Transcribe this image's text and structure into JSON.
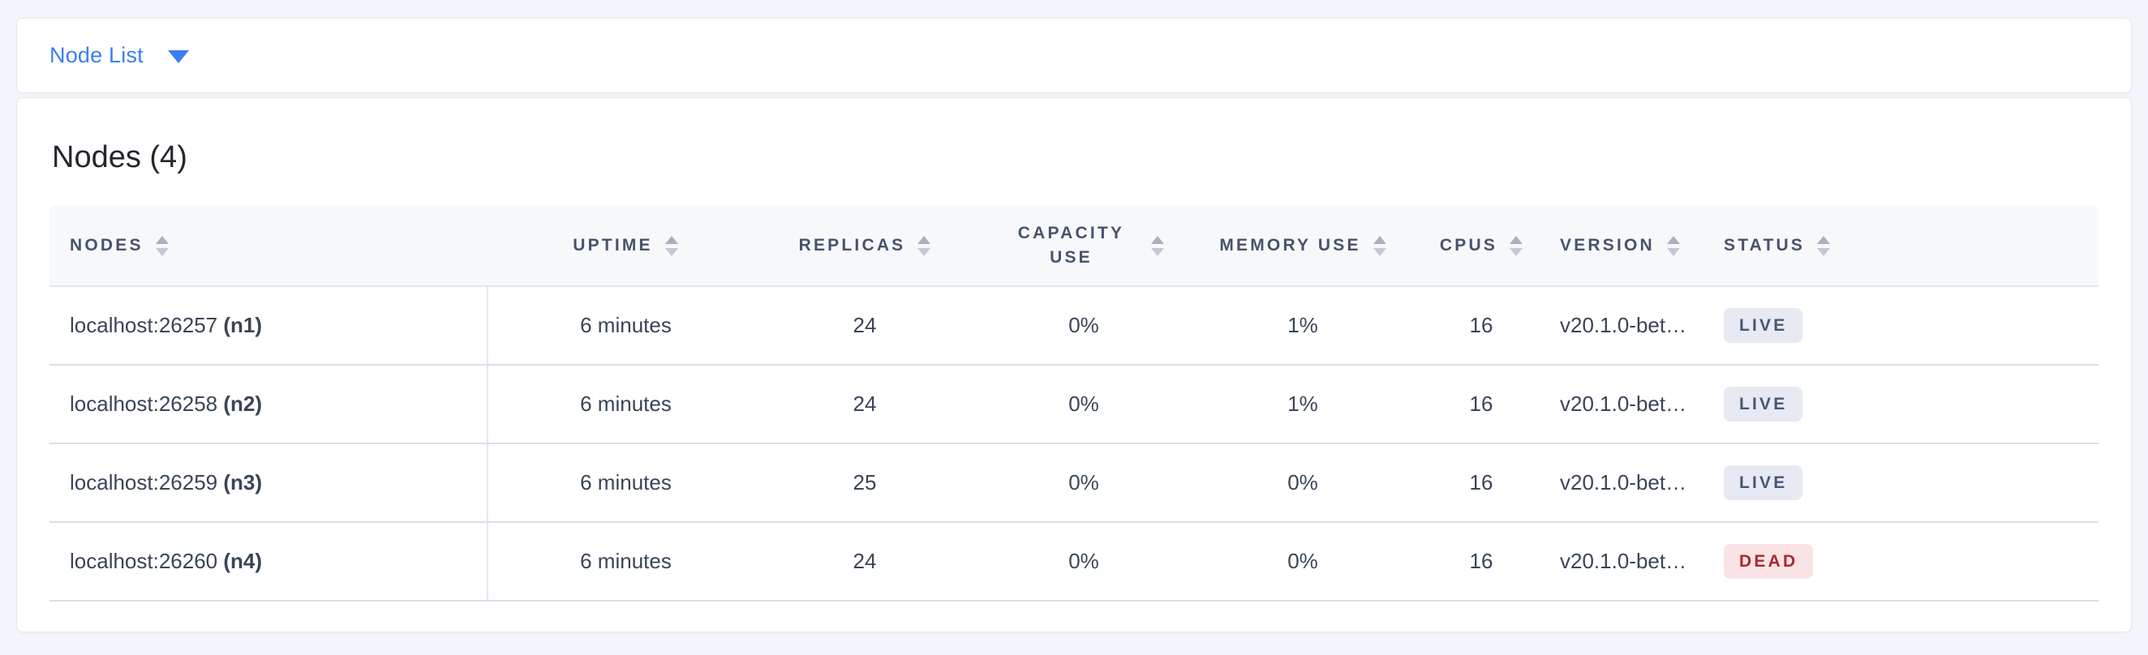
{
  "view_selector": {
    "label": "Node List"
  },
  "panel": {
    "title": "Nodes (4)"
  },
  "table": {
    "headers": [
      {
        "label": "NODES"
      },
      {
        "label": "UPTIME"
      },
      {
        "label": "REPLICAS"
      },
      {
        "label": "CAPACITY USE"
      },
      {
        "label": "MEMORY USE"
      },
      {
        "label": "CPUS"
      },
      {
        "label": "VERSION"
      },
      {
        "label": "STATUS"
      }
    ],
    "rows": [
      {
        "address": "localhost:26257",
        "id": "(n1)",
        "uptime": "6 minutes",
        "replicas": "24",
        "capacity_use": "0%",
        "memory_use": "1%",
        "cpus": "16",
        "version": "v20.1.0-bet…",
        "status": "LIVE"
      },
      {
        "address": "localhost:26258",
        "id": "(n2)",
        "uptime": "6 minutes",
        "replicas": "24",
        "capacity_use": "0%",
        "memory_use": "1%",
        "cpus": "16",
        "version": "v20.1.0-bet…",
        "status": "LIVE"
      },
      {
        "address": "localhost:26259",
        "id": "(n3)",
        "uptime": "6 minutes",
        "replicas": "25",
        "capacity_use": "0%",
        "memory_use": "0%",
        "cpus": "16",
        "version": "v20.1.0-bet…",
        "status": "LIVE"
      },
      {
        "address": "localhost:26260",
        "id": "(n4)",
        "uptime": "6 minutes",
        "replicas": "24",
        "capacity_use": "0%",
        "memory_use": "0%",
        "cpus": "16",
        "version": "v20.1.0-bet…",
        "status": "DEAD"
      }
    ]
  },
  "colors": {
    "accent_blue": "#3b7ff0",
    "page_background": "#f4f5fa",
    "header_text": "#47536b",
    "cell_text": "#3a4557",
    "live_badge_bg": "#e7eaf2",
    "live_badge_text": "#475872",
    "dead_badge_bg": "#fae3e4",
    "dead_badge_text": "#a8292f"
  }
}
